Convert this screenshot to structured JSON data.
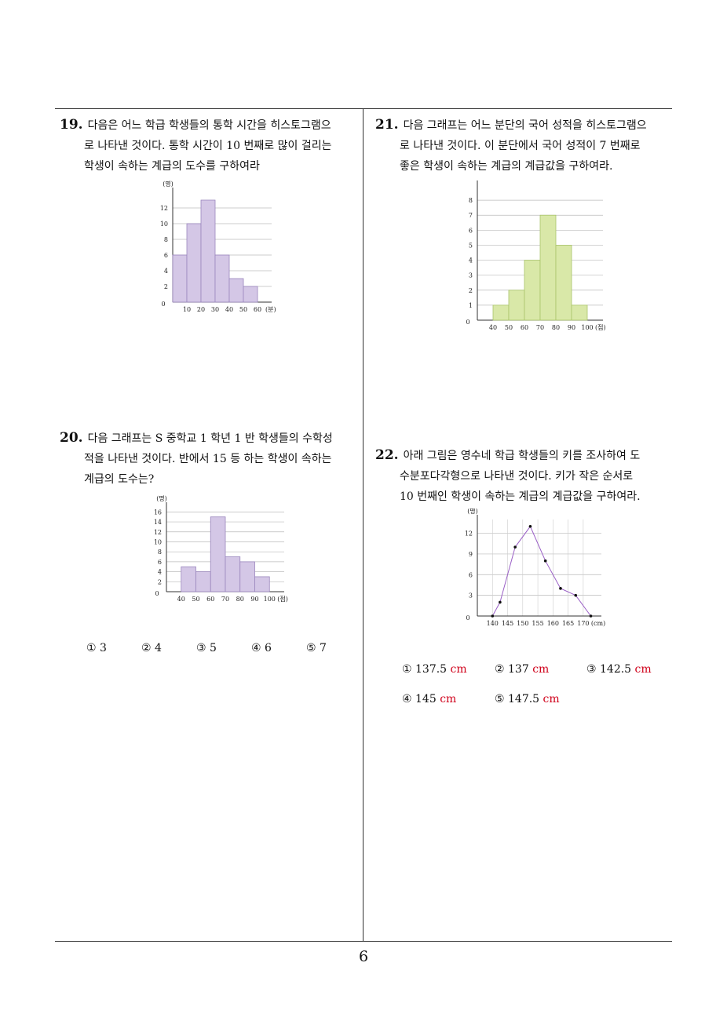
{
  "page": {
    "number": "6"
  },
  "q19": {
    "num": "19.",
    "lines": [
      "다음은 어느 학급 학생들의 통학 시간을 히스토그램으",
      "로 나타낸 것이다. 통학 시간이 10 번째로 많이 걸리는",
      "학생이 속하는 계급의 도수를 구하여라"
    ]
  },
  "q20": {
    "num": "20.",
    "lines": [
      "다음 그래프는 S 중학교 1 학년 1 반 학생들의 수학성",
      "적을 나타낸 것이다. 반에서 15 등 하는 학생이 속하는",
      "계급의 도수는?"
    ],
    "choices": [
      "① 3",
      "② 4",
      "③ 5",
      "④ 6",
      "⑤ 7"
    ]
  },
  "q21": {
    "num": "21.",
    "lines": [
      "다음 그래프는 어느 분단의 국어 성적을 히스토그램으",
      "로 나타낸 것이다. 이 분단에서 국어 성적이 7 번째로",
      "좋은 학생이 속하는 계급의 계급값을 구하여라."
    ]
  },
  "q22": {
    "num": "22.",
    "lines": [
      "아래 그림은 영수네 학급 학생들의 키를 조사하여 도",
      "수분포다각형으로 나타낸 것이다. 키가 작은 순서로",
      "10 번째인 학생이 속하는 계급의 계급값을 구하여라."
    ],
    "choices": [
      {
        "label": "① 137.5",
        "unit": "cm"
      },
      {
        "label": "② 137",
        "unit": "cm"
      },
      {
        "label": "③ 142.5",
        "unit": "cm"
      },
      {
        "label": "④ 145",
        "unit": "cm"
      },
      {
        "label": "⑤ 147.5",
        "unit": "cm"
      }
    ]
  },
  "chart_data": [
    {
      "id": "q19-histogram",
      "type": "bar",
      "ylabel": "(명)",
      "xlabel": "(분)",
      "x_ticks": [
        "10",
        "20",
        "30",
        "40",
        "50",
        "60"
      ],
      "y_ticks": [
        "2",
        "4",
        "6",
        "8",
        "10",
        "12"
      ],
      "origin_label": "0",
      "bins": [
        [
          0,
          10
        ],
        [
          10,
          20
        ],
        [
          20,
          30
        ],
        [
          30,
          40
        ],
        [
          40,
          50
        ],
        [
          50,
          60
        ]
      ],
      "values": [
        6,
        10,
        13,
        6,
        3,
        2
      ],
      "xlim": [
        0,
        70
      ],
      "ylim": [
        0,
        14
      ],
      "color": "#d4c7e6",
      "stroke": "#9a86bd"
    },
    {
      "id": "q20-histogram",
      "type": "bar",
      "ylabel": "(명)",
      "xlabel": "(점)",
      "x_ticks": [
        "40",
        "50",
        "60",
        "70",
        "80",
        "90",
        "100"
      ],
      "y_ticks": [
        "2",
        "4",
        "6",
        "8",
        "10",
        "12",
        "14",
        "16"
      ],
      "origin_label": "0",
      "bins": [
        [
          40,
          50
        ],
        [
          50,
          60
        ],
        [
          60,
          70
        ],
        [
          70,
          80
        ],
        [
          80,
          90
        ],
        [
          90,
          100
        ]
      ],
      "values": [
        5,
        4,
        15,
        7,
        6,
        3
      ],
      "xlim": [
        30,
        110
      ],
      "ylim": [
        0,
        17
      ],
      "color": "#d4c7e6",
      "stroke": "#9a86bd"
    },
    {
      "id": "q21-histogram",
      "type": "bar",
      "ylabel": "(명)",
      "xlabel": "(점)",
      "x_ticks": [
        "40",
        "50",
        "60",
        "70",
        "80",
        "90",
        "100"
      ],
      "y_ticks": [
        "1",
        "2",
        "3",
        "4",
        "5",
        "6",
        "7",
        "8"
      ],
      "origin_label": "0",
      "bins": [
        [
          40,
          50
        ],
        [
          50,
          60
        ],
        [
          60,
          70
        ],
        [
          70,
          80
        ],
        [
          80,
          90
        ],
        [
          90,
          100
        ]
      ],
      "values": [
        1,
        2,
        4,
        7,
        5,
        1
      ],
      "xlim": [
        30,
        110
      ],
      "ylim": [
        0,
        9
      ],
      "color": "#d9e8a8",
      "stroke": "#a9c46a"
    },
    {
      "id": "q22-polygon",
      "type": "line",
      "ylabel": "(명)",
      "xlabel": "(cm)",
      "x_ticks": [
        "140",
        "145",
        "150",
        "155",
        "160",
        "165",
        "170"
      ],
      "y_ticks": [
        "3",
        "6",
        "9",
        "12"
      ],
      "origin_label": "0",
      "x": [
        140,
        142.5,
        147.5,
        152.5,
        157.5,
        162.5,
        167.5,
        172.5
      ],
      "y": [
        0,
        2,
        10,
        13,
        8,
        4,
        3,
        0
      ],
      "xlim": [
        135,
        176
      ],
      "ylim": [
        0,
        14
      ],
      "color": "#9a5fc6"
    }
  ]
}
